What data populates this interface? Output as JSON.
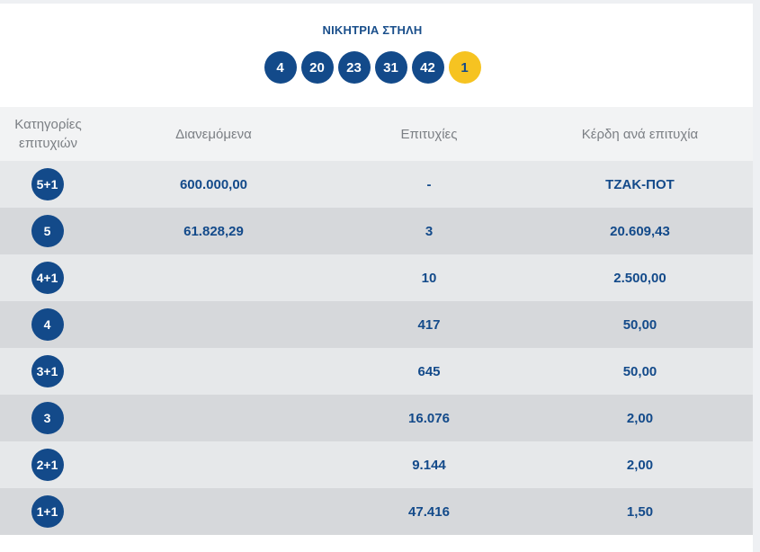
{
  "winning": {
    "title": "ΝΙΚΗΤΡΙΑ ΣΤΗΛΗ",
    "numbers": [
      "4",
      "20",
      "23",
      "31",
      "42"
    ],
    "joker": "1"
  },
  "table": {
    "headers": {
      "category": "Κατηγορίες επιτυχιών",
      "distributed": "Διανεμόμενα",
      "winners": "Επιτυχίες",
      "prize": "Κέρδη ανά επιτυχία"
    },
    "rows": [
      {
        "category": "5+1",
        "distributed": "600.000,00",
        "winners": "-",
        "prize": "ΤΖΑΚ-ΠΟΤ"
      },
      {
        "category": "5",
        "distributed": "61.828,29",
        "winners": "3",
        "prize": "20.609,43"
      },
      {
        "category": "4+1",
        "distributed": "",
        "winners": "10",
        "prize": "2.500,00"
      },
      {
        "category": "4",
        "distributed": "",
        "winners": "417",
        "prize": "50,00"
      },
      {
        "category": "3+1",
        "distributed": "",
        "winners": "645",
        "prize": "50,00"
      },
      {
        "category": "3",
        "distributed": "",
        "winners": "16.076",
        "prize": "2,00"
      },
      {
        "category": "2+1",
        "distributed": "",
        "winners": "9.144",
        "prize": "2,00"
      },
      {
        "category": "1+1",
        "distributed": "",
        "winners": "47.416",
        "prize": "1,50"
      }
    ]
  },
  "colors": {
    "ball_blue": "#134a8a",
    "joker_yellow": "#f6c321",
    "row_light": "#e6e8ea",
    "row_dark": "#d6d8db"
  }
}
